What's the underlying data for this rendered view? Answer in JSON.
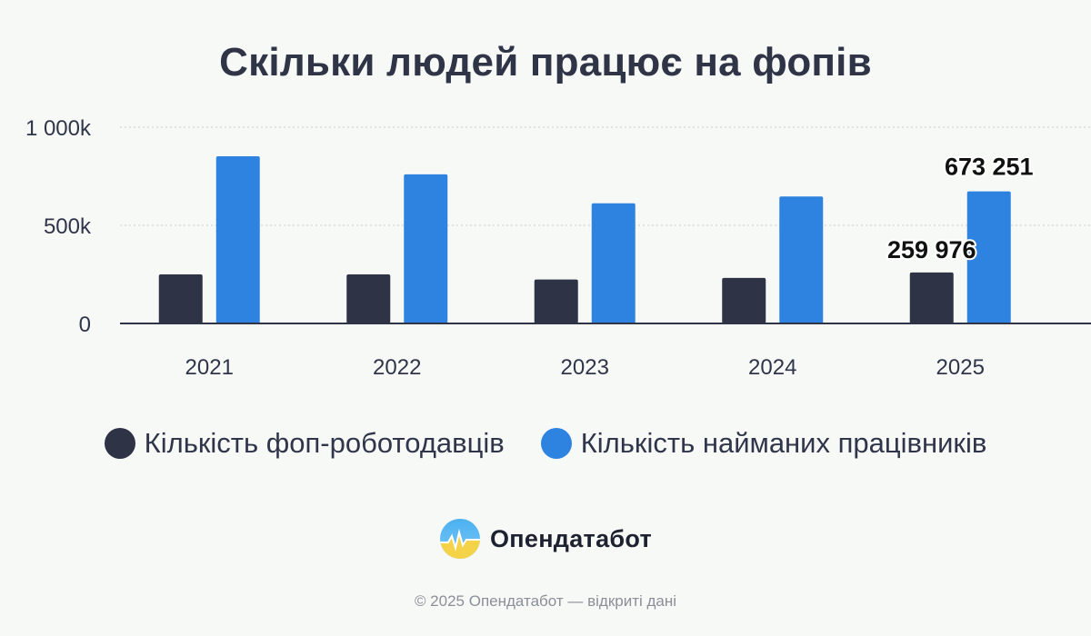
{
  "title": "Скільки людей працює на фопів",
  "chart_data": {
    "type": "bar",
    "title": "Скільки людей працює на фопів",
    "categories": [
      "2021",
      "2022",
      "2023",
      "2024",
      "2025"
    ],
    "series": [
      {
        "name": "Кількість фоп-роботодавців",
        "color": "#2e3346",
        "values": [
          250000,
          250000,
          224000,
          232000,
          259976
        ]
      },
      {
        "name": "Кількість найманих працівників",
        "color": "#2e82e0",
        "values": [
          852000,
          760000,
          612000,
          647000,
          673251
        ]
      }
    ],
    "ylim": [
      0,
      1000000
    ],
    "yticks": [
      {
        "value": 0,
        "label": "0"
      },
      {
        "value": 500000,
        "label": "500k"
      },
      {
        "value": 1000000,
        "label": "1 000k"
      }
    ],
    "data_labels": [
      {
        "series": 0,
        "category": "2025",
        "text": "259 976"
      },
      {
        "series": 1,
        "category": "2025",
        "text": "673 251"
      }
    ],
    "grid": true,
    "legend_position": "bottom"
  },
  "legend": {
    "items": [
      {
        "label": "Кількість фоп-роботодавців",
        "color": "#2e3346"
      },
      {
        "label": "Кількість найманих працівників",
        "color": "#2e82e0"
      }
    ]
  },
  "brand": {
    "name": "Опендатабот",
    "icon": "opendatabot-logo-icon"
  },
  "footer": {
    "copyright": "© 2025 Опендатабот — відкриті дані"
  }
}
